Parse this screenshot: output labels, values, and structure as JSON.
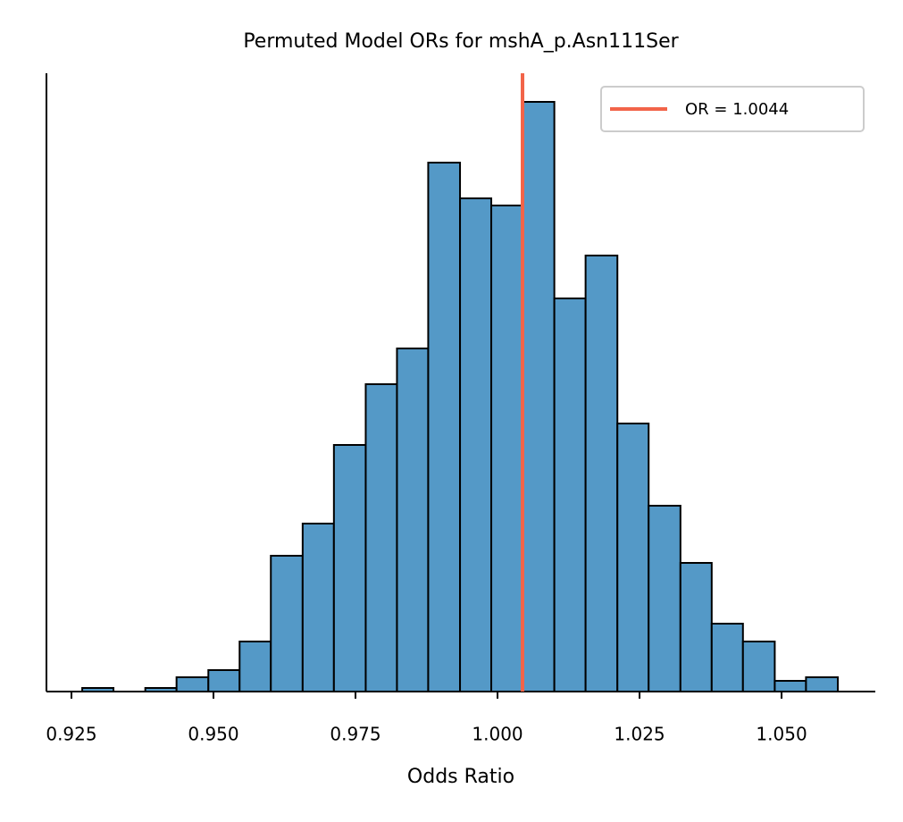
{
  "chart_data": {
    "type": "histogram",
    "title": "Permuted Model ORs for mshA_p.Asn111Ser",
    "x_label": "Odds Ratio",
    "bins": [
      0.9269,
      0.9324,
      0.938,
      0.9435,
      0.9491,
      0.9546,
      0.9601,
      0.9657,
      0.9712,
      0.9768,
      0.9823,
      0.9878,
      0.9934,
      0.9989,
      1.0045,
      1.01,
      1.0155,
      1.0211,
      1.0266,
      1.0322,
      1.0377,
      1.0432,
      1.0488,
      1.0543,
      1.0599
    ],
    "values": [
      1,
      0,
      1,
      4,
      6,
      14,
      38,
      47,
      69,
      86,
      96,
      148,
      138,
      136,
      165,
      110,
      122,
      75,
      52,
      36,
      19,
      14,
      3,
      4
    ],
    "color": "#5499c7",
    "xlim": [
      0.9206,
      1.0665
    ],
    "ylim": [
      0,
      173
    ],
    "xticks": [
      {
        "value": 0.925,
        "label": "0.925"
      },
      {
        "value": 0.95,
        "label": "0.950"
      },
      {
        "value": 0.975,
        "label": "0.975"
      },
      {
        "value": 1.0,
        "label": "1.000"
      },
      {
        "value": 1.025,
        "label": "1.025"
      },
      {
        "value": 1.05,
        "label": "1.050"
      }
    ],
    "vline": {
      "value": 1.0044,
      "label": "OR = 1.0044",
      "color": "#f26449"
    },
    "legend": "upper right"
  }
}
